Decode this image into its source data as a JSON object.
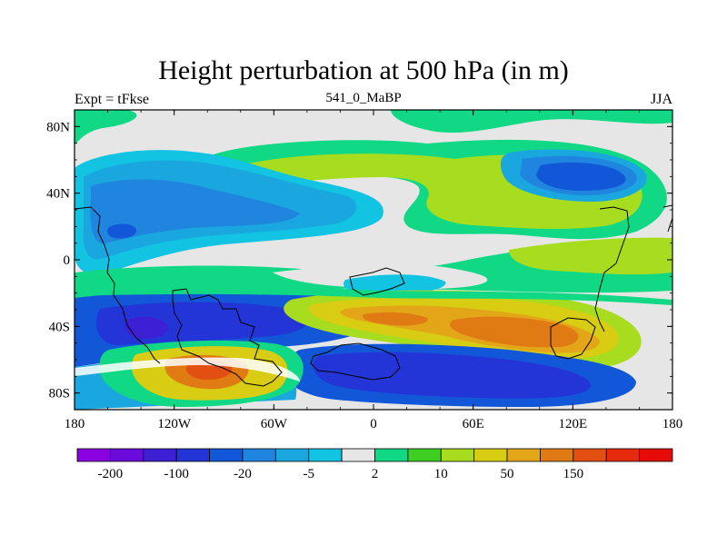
{
  "map": {
    "title": "Height perturbation at 500 hPa (in m)",
    "left_label": "Expt = tFkse",
    "center_label": "541_0_MaBP",
    "right_label": "JJA",
    "lat_ticks": [
      "80N",
      "40N",
      "0",
      "40S",
      "80S"
    ],
    "lat_values": [
      80,
      40,
      0,
      -40,
      -80
    ],
    "lon_ticks": [
      "180",
      "120W",
      "60W",
      "0",
      "60E",
      "120E",
      "180"
    ],
    "lon_values": [
      -180,
      -120,
      -60,
      0,
      60,
      120,
      180
    ]
  },
  "colorbar": {
    "colors": [
      "#8a00e0",
      "#6a0bdc",
      "#3d1fd4",
      "#2335d6",
      "#1157d8",
      "#1f85de",
      "#1aa7e0",
      "#12c3e2",
      "#e6e6e6",
      "#10d885",
      "#3fcf22",
      "#a8dc1e",
      "#d8cd13",
      "#e2a618",
      "#e07b13",
      "#e34f10",
      "#e62a0d",
      "#e60a08"
    ],
    "labels": [
      "-200",
      "-100",
      "-20",
      "-5",
      "2",
      "10",
      "50",
      "150"
    ]
  }
}
